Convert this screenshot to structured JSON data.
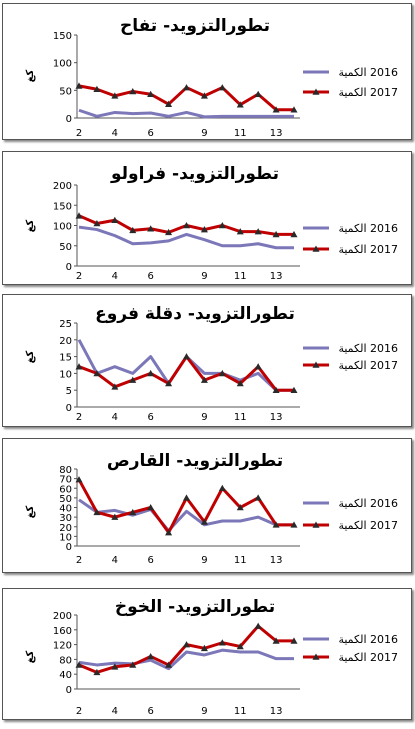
{
  "colors": {
    "s2016": "#7b77b8",
    "s2017": "#c00000",
    "marker": "#2a2a2a",
    "axis": "#555555",
    "text": "#000000"
  },
  "y_unit_label": "كغ",
  "chart_data": [
    {
      "type": "line",
      "title": "تطورالتزويد- تفاح",
      "ylim": [
        0,
        150
      ],
      "yticks": [
        0,
        50,
        100,
        150
      ],
      "x": [
        2,
        3,
        4,
        5,
        6,
        7,
        8,
        9,
        10,
        11,
        12,
        13,
        14
      ],
      "xticks": [
        2,
        4,
        6,
        9,
        11,
        13
      ],
      "series": [
        {
          "name": "2016 الكمية",
          "values": [
            14,
            3,
            10,
            8,
            9,
            3,
            10,
            2,
            3,
            3,
            3,
            3,
            3
          ]
        },
        {
          "name": "2017 الكمية",
          "values": [
            58,
            52,
            40,
            48,
            43,
            25,
            55,
            40,
            55,
            24,
            43,
            15,
            15
          ]
        }
      ]
    },
    {
      "type": "line",
      "title": "تطورالتزويد- فراولو",
      "ylim": [
        0,
        200
      ],
      "yticks": [
        0,
        50,
        100,
        150,
        200
      ],
      "x": [
        2,
        3,
        4,
        5,
        6,
        7,
        8,
        9,
        10,
        11,
        12,
        13,
        14
      ],
      "xticks": [
        2,
        4,
        6,
        9,
        11,
        13
      ],
      "series": [
        {
          "name": "2016 الكمية",
          "values": [
            96,
            90,
            75,
            55,
            57,
            62,
            78,
            65,
            50,
            50,
            55,
            45,
            45
          ]
        },
        {
          "name": "2017 الكمية",
          "values": [
            124,
            105,
            113,
            88,
            92,
            83,
            100,
            90,
            100,
            85,
            85,
            78,
            78
          ]
        }
      ]
    },
    {
      "type": "line",
      "title": "تطورالتزويد- دقلة فروع",
      "ylim": [
        0,
        25
      ],
      "yticks": [
        0,
        5,
        10,
        15,
        20,
        25
      ],
      "x": [
        2,
        3,
        4,
        5,
        6,
        7,
        8,
        9,
        10,
        11,
        12,
        13,
        14
      ],
      "xticks": [
        2,
        4,
        6,
        9,
        11,
        13
      ],
      "series": [
        {
          "name": "2016 الكمية",
          "values": [
            20,
            10,
            12,
            10,
            15,
            7,
            15,
            10,
            10,
            8,
            10,
            5,
            5
          ]
        },
        {
          "name": "2017 الكمية",
          "values": [
            12,
            10,
            6,
            8,
            10,
            7,
            15,
            8,
            10,
            7,
            12,
            5,
            5
          ]
        }
      ]
    },
    {
      "type": "line",
      "title": "تطورالتزويد- القارص",
      "ylim": [
        0,
        80
      ],
      "yticks": [
        0,
        10,
        20,
        30,
        40,
        50,
        60,
        70,
        80
      ],
      "x": [
        2,
        3,
        4,
        5,
        6,
        7,
        8,
        9,
        10,
        11,
        12,
        13,
        14
      ],
      "xticks": [
        2,
        4,
        6,
        9,
        11,
        13
      ],
      "series": [
        {
          "name": "2016 الكمية",
          "values": [
            48,
            35,
            37,
            32,
            38,
            16,
            36,
            22,
            26,
            26,
            30,
            22,
            22
          ]
        },
        {
          "name": "2017 الكمية",
          "values": [
            69,
            35,
            30,
            35,
            40,
            14,
            50,
            25,
            60,
            40,
            50,
            22,
            22
          ]
        }
      ]
    },
    {
      "type": "line",
      "title": "تطورالتزويد- الخوخ",
      "ylim": [
        0,
        200
      ],
      "yticks": [
        0,
        40,
        80,
        120,
        160,
        200
      ],
      "x": [
        2,
        3,
        4,
        5,
        6,
        7,
        8,
        9,
        10,
        11,
        12,
        13,
        14
      ],
      "xticks": [
        2,
        4,
        6,
        9,
        11,
        13
      ],
      "series": [
        {
          "name": "2016 الكمية",
          "values": [
            72,
            65,
            70,
            68,
            78,
            55,
            100,
            92,
            105,
            100,
            100,
            82,
            82
          ]
        },
        {
          "name": "2017 الكمية",
          "values": [
            65,
            45,
            60,
            65,
            88,
            65,
            120,
            110,
            125,
            115,
            170,
            130,
            130
          ]
        }
      ]
    }
  ]
}
